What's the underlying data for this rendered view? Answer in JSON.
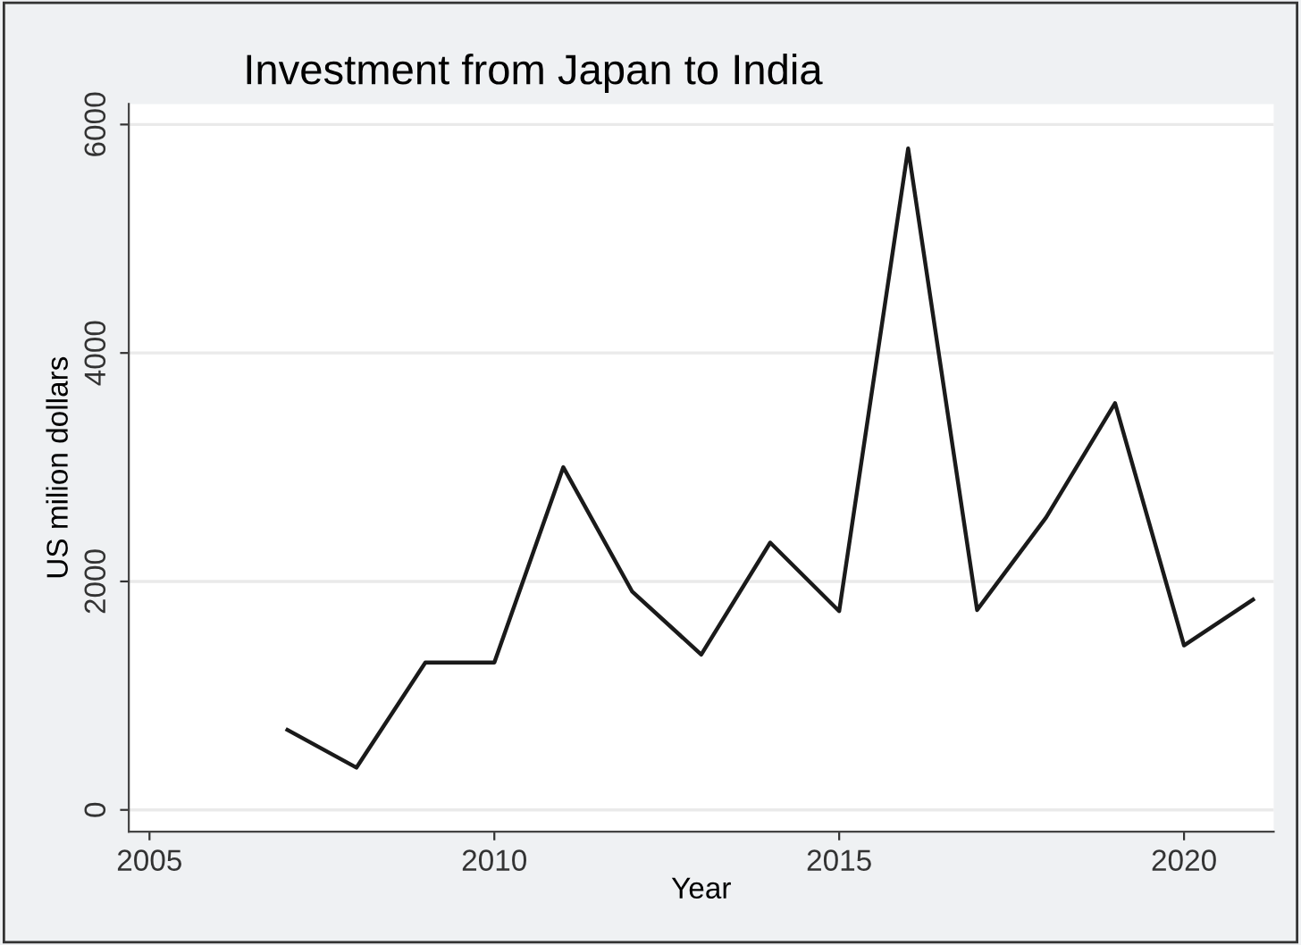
{
  "chart_data": {
    "type": "line",
    "title": "Investment from Japan to India",
    "xlabel": "Year",
    "ylabel": "US milion dollars",
    "x": [
      2007,
      2008,
      2009,
      2010,
      2011,
      2012,
      2013,
      2014,
      2015,
      2016,
      2017,
      2018,
      2019,
      2020,
      2021
    ],
    "series": [
      {
        "color": "#1a1a1a",
        "values": [
          700,
          370,
          1290,
          1290,
          3000,
          1910,
          1360,
          2340,
          1740,
          5790,
          1750,
          2560,
          3560,
          1440,
          1840
        ]
      }
    ],
    "xlim": [
      2004.7,
      2021.3
    ],
    "xticks": [
      2005,
      2010,
      2015,
      2020
    ],
    "ylim": [
      -190,
      6180
    ],
    "yticks": [
      0,
      2000,
      4000,
      6000
    ],
    "grid": "y",
    "marker": "none",
    "line_style": "solid",
    "legend": false
  }
}
